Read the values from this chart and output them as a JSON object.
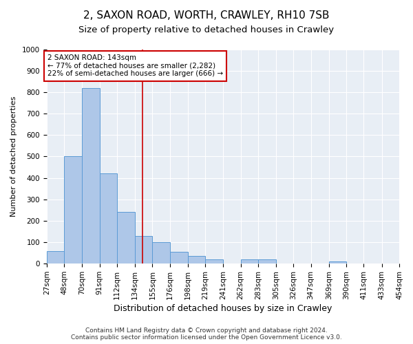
{
  "title1": "2, SAXON ROAD, WORTH, CRAWLEY, RH10 7SB",
  "title2": "Size of property relative to detached houses in Crawley",
  "xlabel": "Distribution of detached houses by size in Crawley",
  "ylabel": "Number of detached properties",
  "footer": "Contains HM Land Registry data © Crown copyright and database right 2024.\nContains public sector information licensed under the Open Government Licence v3.0.",
  "bin_edges": [
    27,
    48,
    70,
    91,
    112,
    134,
    155,
    176,
    198,
    219,
    241,
    262,
    283,
    305,
    326,
    347,
    369,
    390,
    411,
    433,
    454
  ],
  "bar_heights": [
    60,
    500,
    820,
    420,
    240,
    130,
    100,
    55,
    35,
    20,
    0,
    20,
    20,
    0,
    0,
    0,
    10,
    0,
    0,
    0
  ],
  "bar_color": "#aec7e8",
  "bar_edge_color": "#5b9bd5",
  "background_color": "#e8eef5",
  "vline_x": 143,
  "vline_color": "#cc0000",
  "annotation_text": "2 SAXON ROAD: 143sqm\n← 77% of detached houses are smaller (2,282)\n22% of semi-detached houses are larger (666) →",
  "ylim": [
    0,
    1000
  ],
  "yticks": [
    0,
    100,
    200,
    300,
    400,
    500,
    600,
    700,
    800,
    900,
    1000
  ],
  "title1_fontsize": 11,
  "title2_fontsize": 9.5,
  "xlabel_fontsize": 9,
  "ylabel_fontsize": 8,
  "tick_fontsize": 7.5,
  "footer_fontsize": 6.5
}
